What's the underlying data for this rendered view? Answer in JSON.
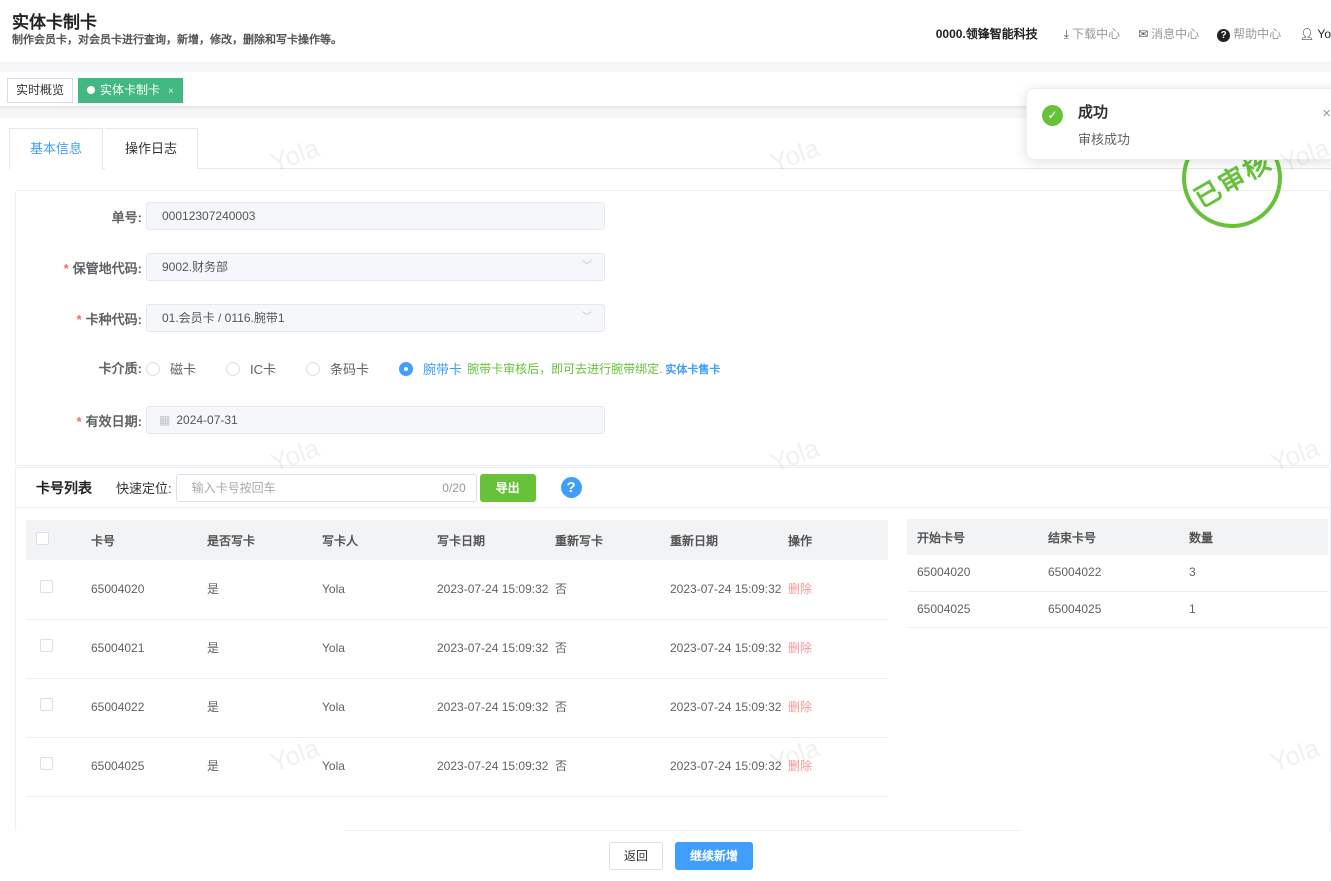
{
  "header": {
    "title": "实体卡制卡",
    "subtitle": "制作会员卡，对会员卡进行查询，新增，修改，删除和写卡操作等。",
    "org": "0000.领锋智能科技",
    "download": "下载中心",
    "messages": "消息中心",
    "help": "帮助中心",
    "user": "Yo"
  },
  "page_tabs": [
    {
      "label": "实时概览"
    },
    {
      "label": "实体卡制卡",
      "close": "×"
    }
  ],
  "form_tabs": [
    {
      "label": "基本信息"
    },
    {
      "label": "操作日志"
    }
  ],
  "form": {
    "order_label": "单号:",
    "order_value": "00012307240003",
    "storage_label": "保管地代码:",
    "storage_value": "9002.财务部",
    "cardtype_label": "卡种代码:",
    "cardtype_value": "01.会员卡 / 0116.腕带1",
    "medium_label": "卡介质:",
    "media": [
      "磁卡",
      "IC卡",
      "条码卡",
      "腕带卡"
    ],
    "medium_selected": "腕带卡",
    "medium_tip": "腕带卡审核后，即可去进行腕带绑定.",
    "medium_link": "实体卡售卡",
    "expiry_label": "有效日期:",
    "expiry_value": "2024-07-31"
  },
  "card_list": {
    "title": "卡号列表",
    "locate_label": "快速定位:",
    "locate_placeholder": "输入卡号按回车",
    "locate_count": "0/20",
    "export": "导出",
    "columns": [
      "卡号",
      "是否写卡",
      "写卡人",
      "写卡日期",
      "重新写卡",
      "重新日期",
      "操作"
    ],
    "rows": [
      {
        "card": "65004020",
        "written": "是",
        "writer": "Yola",
        "date": "2023-07-24 15:09:32",
        "rewrite": "否",
        "redate": "2023-07-24 15:09:32",
        "action": "删除"
      },
      {
        "card": "65004021",
        "written": "是",
        "writer": "Yola",
        "date": "2023-07-24 15:09:32",
        "rewrite": "否",
        "redate": "2023-07-24 15:09:32",
        "action": "删除"
      },
      {
        "card": "65004022",
        "written": "是",
        "writer": "Yola",
        "date": "2023-07-24 15:09:32",
        "rewrite": "否",
        "redate": "2023-07-24 15:09:32",
        "action": "删除"
      },
      {
        "card": "65004025",
        "written": "是",
        "writer": "Yola",
        "date": "2023-07-24 15:09:32",
        "rewrite": "否",
        "redate": "2023-07-24 15:09:32",
        "action": "删除"
      }
    ]
  },
  "range_table": {
    "columns": [
      "开始卡号",
      "结束卡号",
      "数量"
    ],
    "rows": [
      [
        "65004020",
        "65004022",
        "3"
      ],
      [
        "65004025",
        "65004025",
        "1"
      ]
    ]
  },
  "footer": {
    "back": "返回",
    "continue": "继续新增"
  },
  "toast": {
    "title": "成功",
    "message": "审核成功",
    "close": "×"
  },
  "stamp": "已审核",
  "watermark": "Yola",
  "colors": {
    "primary": "#409eff",
    "success": "#67c23a",
    "tab_active": "#42b983",
    "danger": "#f89898"
  }
}
